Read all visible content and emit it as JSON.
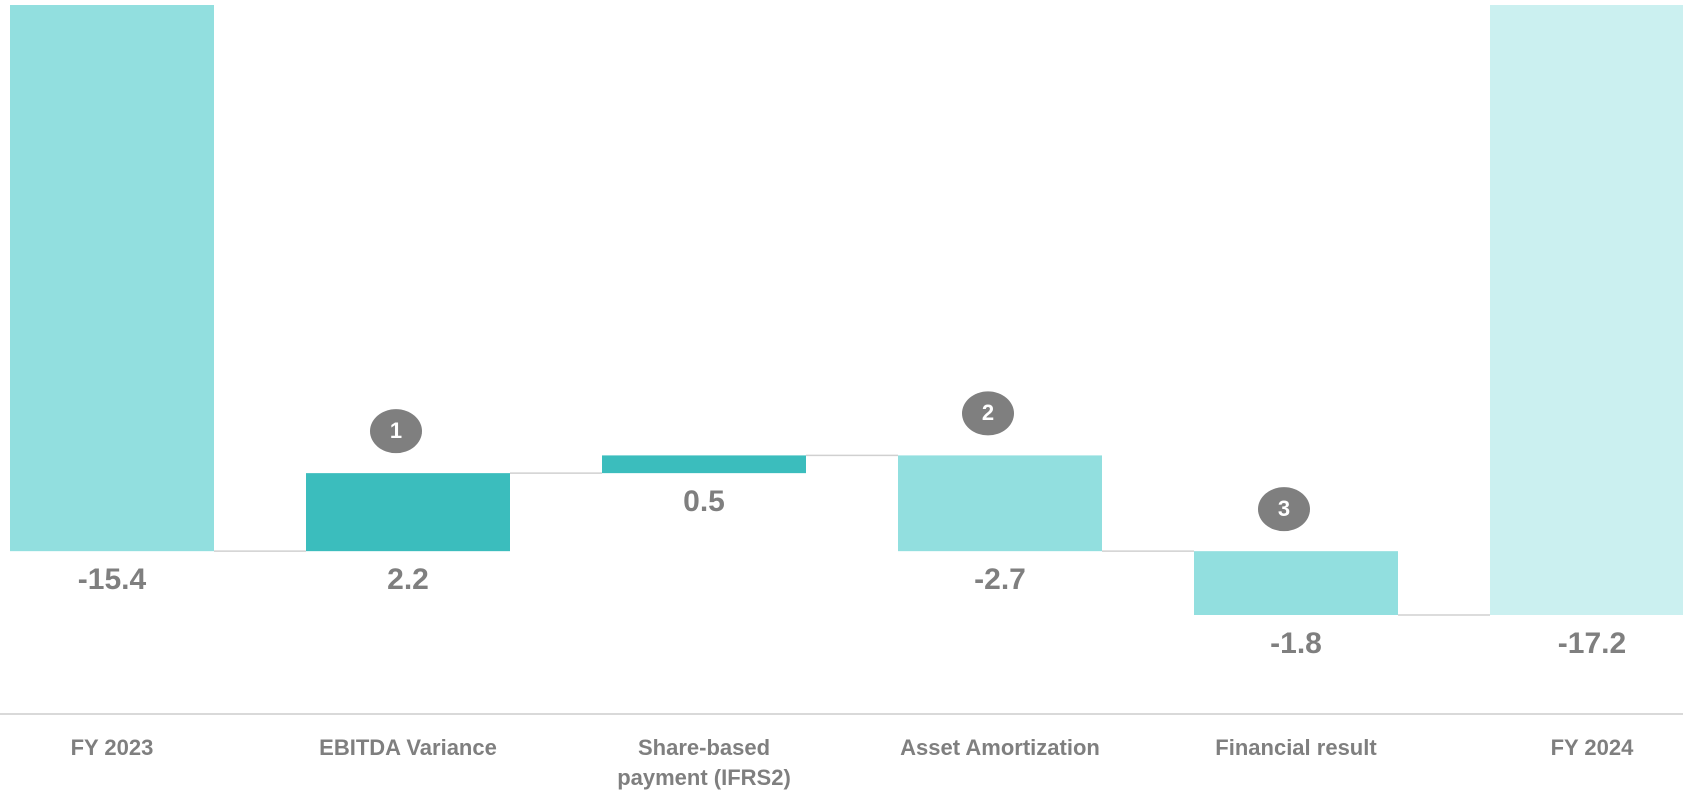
{
  "chart_data": {
    "type": "waterfall",
    "categories": [
      "FY 2023",
      "EBITDA Variance",
      "Share-based\npayment (IFRS2)",
      "Asset Amortization",
      "Financial result",
      "FY 2024"
    ],
    "values": [
      -15.4,
      2.2,
      0.5,
      -2.7,
      -1.8,
      -17.2
    ],
    "measure": [
      "absolute",
      "relative",
      "relative",
      "relative",
      "relative",
      "total"
    ],
    "colors": [
      "#92dfdf",
      "#3bbdbd",
      "#3bbdbd",
      "#92dfdf",
      "#92dfdf",
      "#cbf0f0"
    ],
    "markers": [
      null,
      "1",
      null,
      "2",
      "3",
      null
    ]
  }
}
